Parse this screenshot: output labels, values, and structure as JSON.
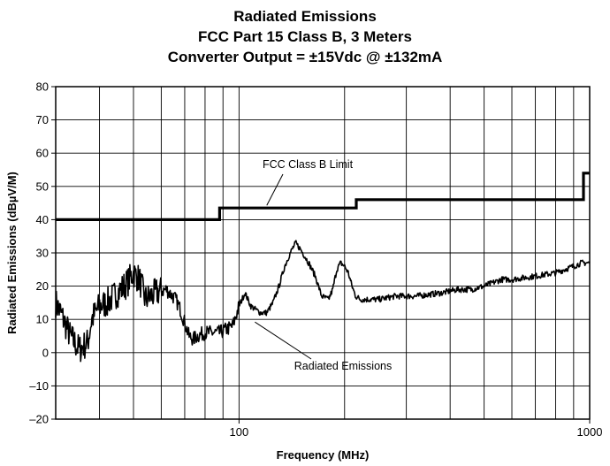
{
  "chart_data": {
    "type": "line",
    "title": "Radiated Emissions",
    "subtitle": [
      "FCC Part 15 Class B, 3 Meters",
      "Converter Output = ±15Vdc @ ±132mA"
    ],
    "xlabel": "Frequency (MHz)",
    "ylabel": "Radiated Emissions (dBµV/M)",
    "xscale": "log",
    "xlim": [
      30,
      1000
    ],
    "ylim": [
      -20,
      80
    ],
    "xticks": [
      100,
      1000
    ],
    "xtick_labels": [
      "100",
      "1000"
    ],
    "yticks": [
      -20,
      -10,
      0,
      10,
      20,
      30,
      40,
      50,
      60,
      70,
      80
    ],
    "ytick_labels": [
      "–20",
      "–10",
      "0",
      "10",
      "20",
      "30",
      "40",
      "50",
      "60",
      "70",
      "80"
    ],
    "grid": true,
    "series": [
      {
        "name": "FCC Class B Limit",
        "style": "step",
        "x": [
          30,
          88,
          88,
          216,
          216,
          960,
          960,
          1000
        ],
        "y": [
          40,
          40,
          43.5,
          43.5,
          46,
          46,
          54,
          54
        ]
      },
      {
        "name": "Radiated Emissions",
        "style": "noisy",
        "x": [
          30,
          31,
          33,
          35,
          37,
          38,
          40,
          42,
          45,
          48,
          50,
          52,
          54,
          56,
          58,
          62,
          66,
          68,
          70,
          72,
          74,
          76,
          80,
          85,
          88,
          92,
          96,
          100,
          104,
          108,
          115,
          120,
          125,
          130,
          135,
          140,
          145,
          150,
          158,
          165,
          172,
          180,
          185,
          190,
          195,
          200,
          205,
          210,
          215,
          222,
          230,
          250,
          280,
          320,
          380,
          420,
          460,
          500,
          560,
          600,
          700,
          800,
          900,
          950,
          1000
        ],
        "y": [
          15,
          12,
          5,
          1,
          3,
          10,
          14,
          15,
          18,
          21,
          24,
          22,
          16,
          17,
          18,
          19,
          16,
          13,
          9,
          5,
          4,
          5,
          6,
          6,
          6,
          7,
          8,
          14,
          18,
          14,
          12,
          12,
          15,
          20,
          26,
          30,
          33,
          31,
          27,
          23,
          17,
          16,
          19,
          25,
          27,
          26,
          24,
          20,
          17,
          16,
          16,
          16,
          17,
          17,
          18,
          19,
          19,
          20,
          22,
          22,
          23,
          24,
          26,
          27,
          27
        ]
      }
    ],
    "annotations": [
      {
        "text": "FCC Class B Limit",
        "target_series": 0
      },
      {
        "text": "Radiated Emissions",
        "target_series": 1
      }
    ]
  }
}
